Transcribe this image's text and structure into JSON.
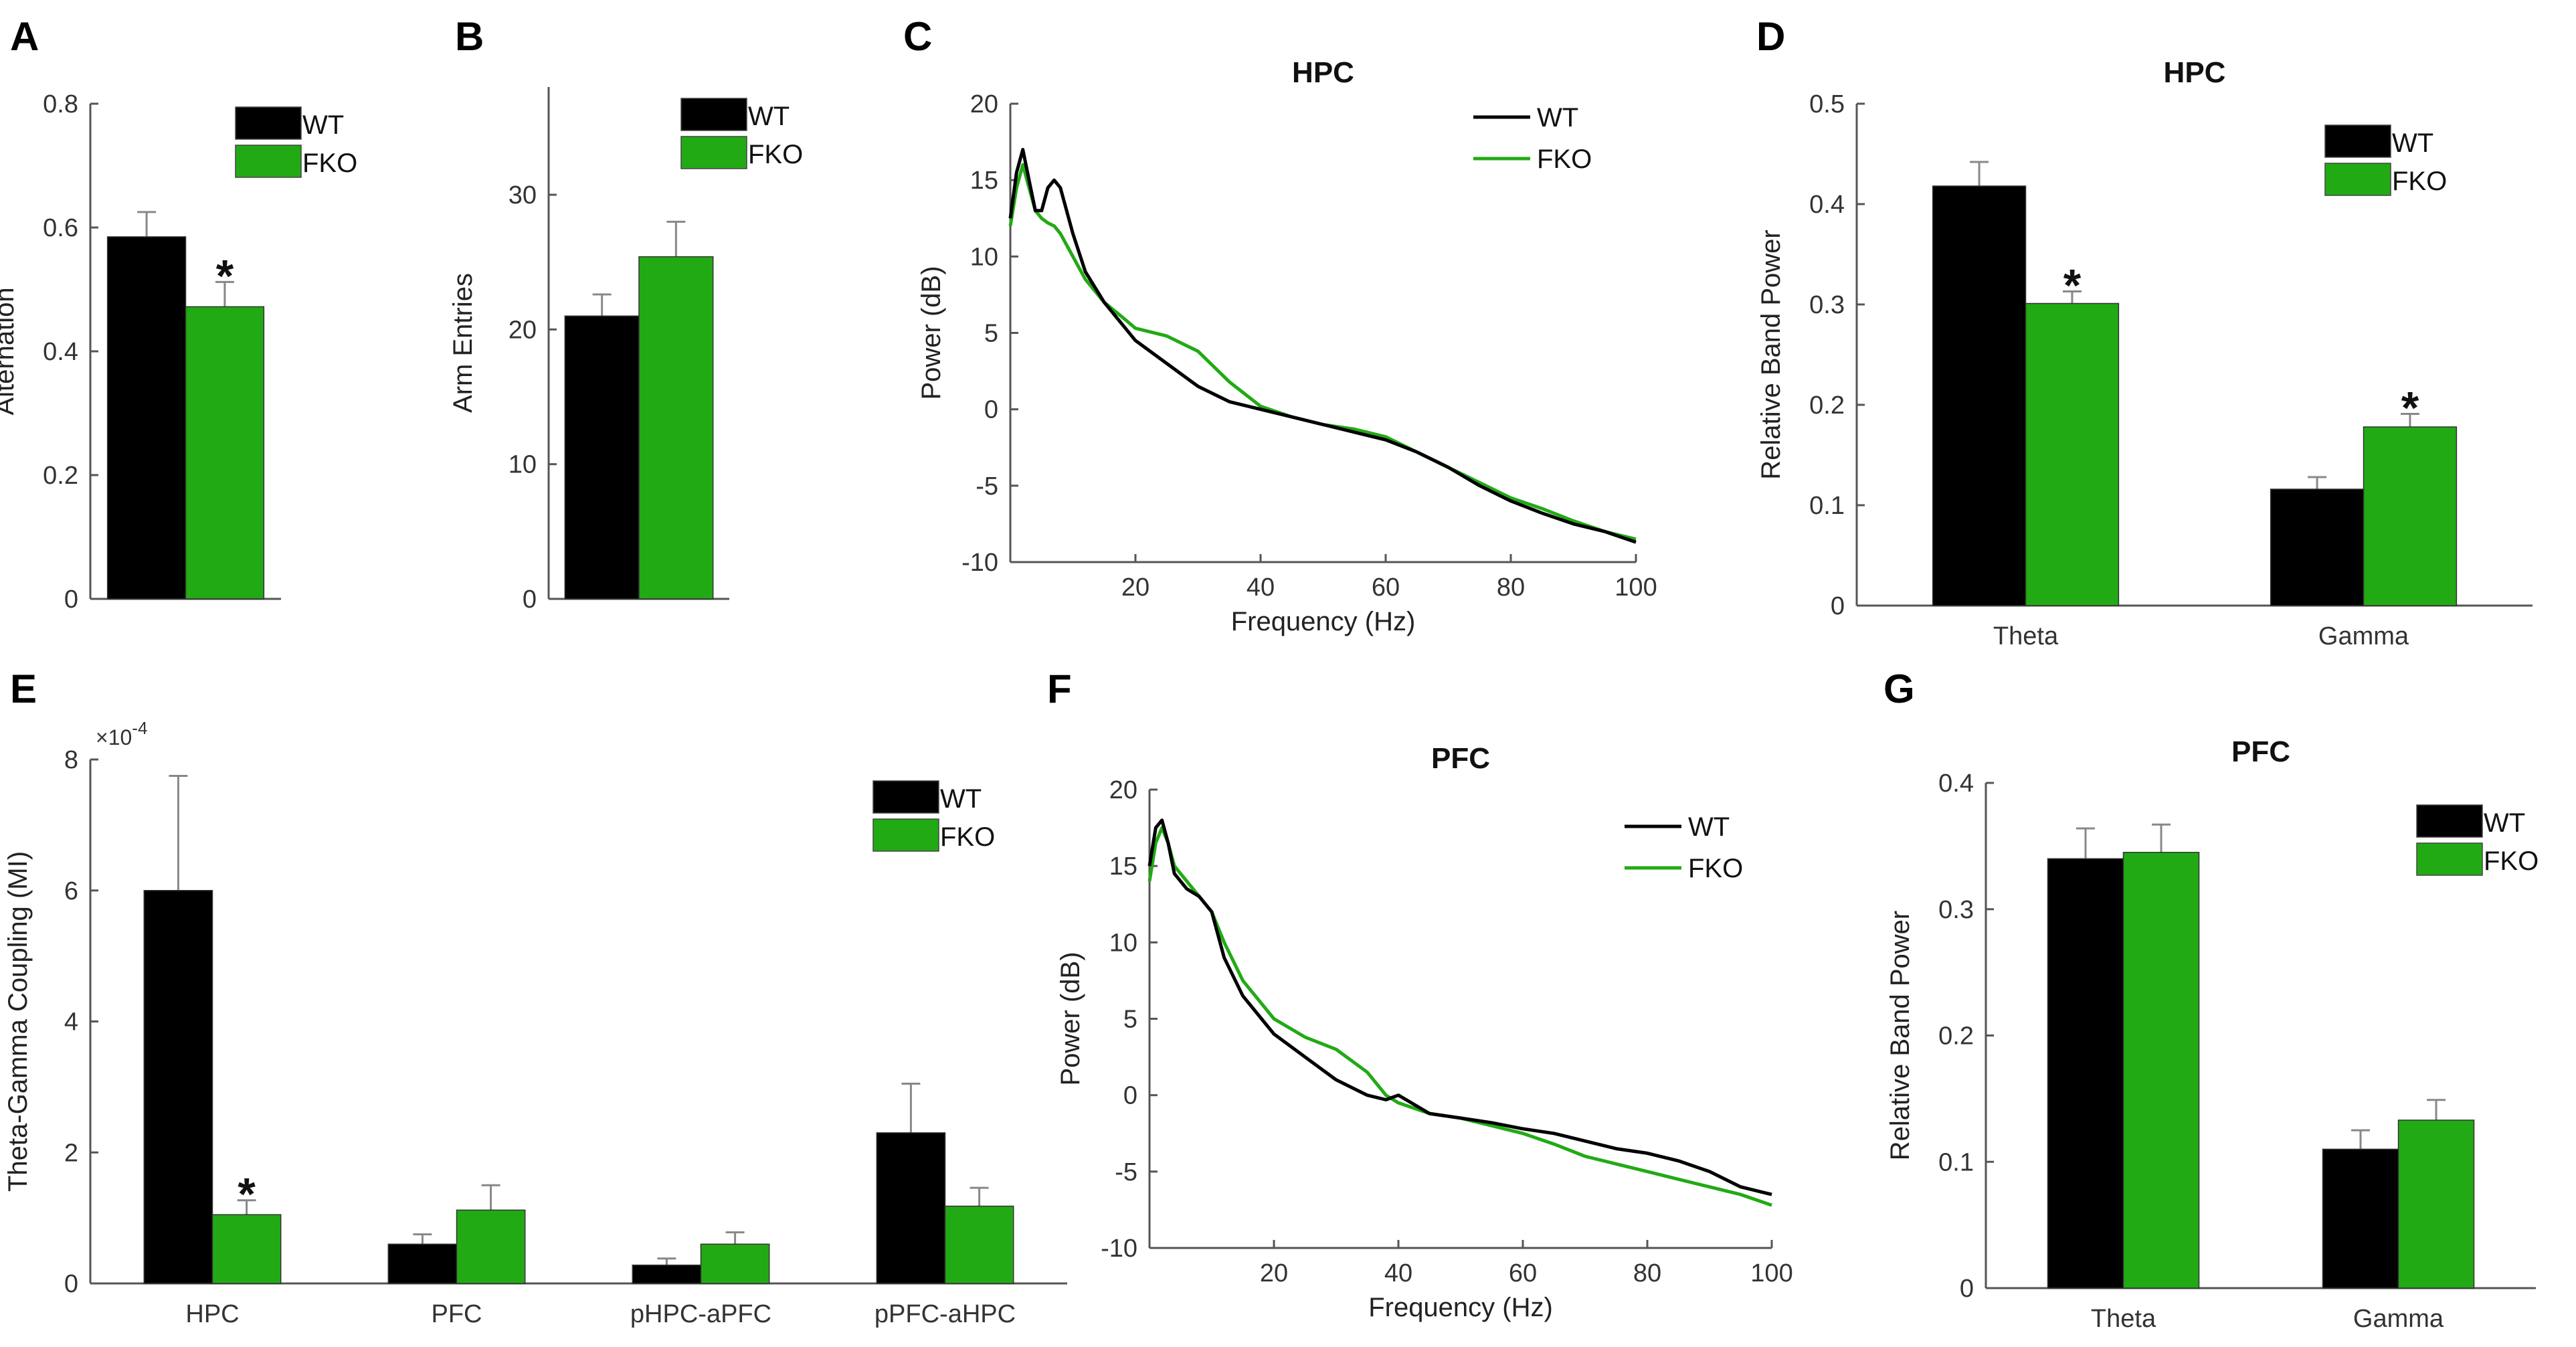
{
  "colors": {
    "wt": "#000000",
    "fko": "#22aa15",
    "axis": "#555555",
    "err": "#888888"
  },
  "chart_data": [
    {
      "panel": "A",
      "type": "bar",
      "title": "",
      "xlabel": "",
      "ylabel": "Alternation",
      "ylim": [
        0,
        0.8
      ],
      "yticks": [
        "0",
        "0.2",
        "0.4",
        "0.6",
        "0.8"
      ],
      "categories": [
        ""
      ],
      "series": [
        {
          "name": "WT",
          "values": [
            0.585
          ],
          "errors": [
            0.04
          ]
        },
        {
          "name": "FKO",
          "values": [
            0.472
          ],
          "errors": [
            0.04
          ]
        }
      ],
      "annotations": [
        {
          "text": "*",
          "category": 0,
          "series": "FKO"
        }
      ],
      "legend": [
        "WT",
        "FKO"
      ]
    },
    {
      "panel": "B",
      "type": "bar",
      "title": "",
      "xlabel": "",
      "ylabel": "Arm Entries",
      "ylim": [
        0,
        38
      ],
      "yticks": [
        "0",
        "10",
        "20",
        "30"
      ],
      "ytick_values": [
        0,
        10,
        20,
        30
      ],
      "categories": [
        ""
      ],
      "series": [
        {
          "name": "WT",
          "values": [
            21.0
          ],
          "errors": [
            1.6
          ]
        },
        {
          "name": "FKO",
          "values": [
            25.4
          ],
          "errors": [
            2.6
          ]
        }
      ],
      "annotations": [],
      "legend": [
        "WT",
        "FKO"
      ]
    },
    {
      "panel": "C",
      "type": "line",
      "title": "HPC",
      "xlabel": "Frequency (Hz)",
      "ylabel": "Power (dB)",
      "xlim": [
        0,
        100
      ],
      "ylim": [
        -10,
        20
      ],
      "xticks": [
        "20",
        "40",
        "60",
        "80",
        "100"
      ],
      "yticks": [
        "-10",
        "-5",
        "0",
        "5",
        "10",
        "15",
        "20"
      ],
      "x": [
        0,
        1,
        2,
        3,
        4,
        5,
        6,
        7,
        8,
        10,
        12,
        15,
        18,
        20,
        25,
        30,
        35,
        40,
        45,
        50,
        55,
        60,
        65,
        70,
        75,
        80,
        85,
        90,
        95,
        100
      ],
      "series": [
        {
          "name": "WT",
          "values": [
            12.5,
            15.5,
            17.0,
            15.0,
            13.0,
            13.0,
            14.5,
            15.0,
            14.5,
            11.5,
            9.0,
            7.0,
            5.5,
            4.5,
            3.0,
            1.5,
            0.5,
            0.0,
            -0.5,
            -1.0,
            -1.5,
            -2.0,
            -2.8,
            -3.8,
            -5.0,
            -6.0,
            -6.8,
            -7.5,
            -8.0,
            -8.7
          ]
        },
        {
          "name": "FKO",
          "values": [
            12.0,
            14.5,
            16.0,
            14.5,
            13.0,
            12.5,
            12.2,
            12.0,
            11.5,
            10.0,
            8.5,
            7.0,
            6.0,
            5.3,
            4.8,
            3.8,
            1.8,
            0.2,
            -0.5,
            -1.0,
            -1.3,
            -1.8,
            -2.8,
            -3.8,
            -4.8,
            -5.8,
            -6.5,
            -7.3,
            -8.0,
            -8.5
          ]
        }
      ],
      "legend": [
        "WT",
        "FKO"
      ]
    },
    {
      "panel": "D",
      "type": "bar",
      "title": "HPC",
      "xlabel": "",
      "ylabel": "Relative Band Power",
      "ylim": [
        0,
        0.5
      ],
      "yticks": [
        "0",
        "0.1",
        "0.2",
        "0.3",
        "0.4",
        "0.5"
      ],
      "categories": [
        "Theta",
        "Gamma"
      ],
      "series": [
        {
          "name": "WT",
          "values": [
            0.418,
            0.116
          ],
          "errors": [
            0.024,
            0.012
          ]
        },
        {
          "name": "FKO",
          "values": [
            0.301,
            0.178
          ],
          "errors": [
            0.012,
            0.013
          ]
        }
      ],
      "annotations": [
        {
          "text": "*",
          "category": 0,
          "series": "FKO"
        },
        {
          "text": "*",
          "category": 1,
          "series": "FKO"
        }
      ],
      "legend": [
        "WT",
        "FKO"
      ]
    },
    {
      "panel": "E",
      "type": "bar",
      "title": "",
      "xlabel": "",
      "ylabel": "Theta-Gamma Coupling (MI)",
      "ylim": [
        0,
        8
      ],
      "yticks": [
        "0",
        "2",
        "4",
        "6",
        "8"
      ],
      "y_exponent": "×10",
      "y_exponent_power": "-4",
      "categories": [
        "HPC",
        "PFC",
        "pHPC-aPFC",
        "pPFC-aHPC"
      ],
      "series": [
        {
          "name": "WT",
          "values": [
            6.0,
            0.6,
            0.28,
            2.3
          ],
          "errors": [
            1.75,
            0.15,
            0.1,
            0.75
          ]
        },
        {
          "name": "FKO",
          "values": [
            1.05,
            1.12,
            0.6,
            1.18
          ],
          "errors": [
            0.22,
            0.38,
            0.18,
            0.28
          ]
        }
      ],
      "annotations": [
        {
          "text": "*",
          "category": 0,
          "series": "FKO"
        }
      ],
      "legend": [
        "WT",
        "FKO"
      ]
    },
    {
      "panel": "F",
      "type": "line",
      "title": "PFC",
      "xlabel": "Frequency (Hz)",
      "ylabel": "Power (dB)",
      "xlim": [
        0,
        100
      ],
      "ylim": [
        -10,
        20
      ],
      "xticks": [
        "20",
        "40",
        "60",
        "80",
        "100"
      ],
      "yticks": [
        "-10",
        "-5",
        "0",
        "5",
        "10",
        "15",
        "20"
      ],
      "x": [
        0,
        1,
        2,
        3,
        4,
        6,
        8,
        10,
        12,
        15,
        18,
        20,
        25,
        30,
        35,
        38,
        40,
        45,
        50,
        55,
        60,
        65,
        70,
        75,
        80,
        85,
        90,
        95,
        100
      ],
      "series": [
        {
          "name": "WT",
          "values": [
            15.0,
            17.5,
            18.0,
            16.5,
            14.5,
            13.5,
            13.0,
            12.0,
            9.0,
            6.5,
            5.0,
            4.0,
            2.5,
            1.0,
            0.0,
            -0.3,
            0.0,
            -1.2,
            -1.5,
            -1.8,
            -2.2,
            -2.5,
            -3.0,
            -3.5,
            -3.8,
            -4.3,
            -5.0,
            -6.0,
            -6.5
          ]
        },
        {
          "name": "FKO",
          "values": [
            14.0,
            16.5,
            17.5,
            16.5,
            15.0,
            14.0,
            13.0,
            12.0,
            10.0,
            7.5,
            6.0,
            5.0,
            3.8,
            3.0,
            1.5,
            0.0,
            -0.5,
            -1.2,
            -1.5,
            -2.0,
            -2.5,
            -3.2,
            -4.0,
            -4.5,
            -5.0,
            -5.5,
            -6.0,
            -6.5,
            -7.2
          ]
        }
      ],
      "legend": [
        "WT",
        "FKO"
      ]
    },
    {
      "panel": "G",
      "type": "bar",
      "title": "PFC",
      "xlabel": "",
      "ylabel": "Relative Band Power",
      "ylim": [
        0,
        0.4
      ],
      "yticks": [
        "0",
        "0.1",
        "0.2",
        "0.3",
        "0.4"
      ],
      "categories": [
        "Theta",
        "Gamma"
      ],
      "series": [
        {
          "name": "WT",
          "values": [
            0.34,
            0.11
          ],
          "errors": [
            0.024,
            0.015
          ]
        },
        {
          "name": "FKO",
          "values": [
            0.345,
            0.133
          ],
          "errors": [
            0.022,
            0.016
          ]
        }
      ],
      "annotations": [],
      "legend": [
        "WT",
        "FKO"
      ]
    }
  ]
}
